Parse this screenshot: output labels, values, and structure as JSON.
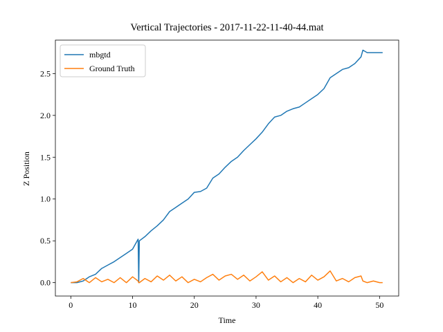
{
  "chart_data": {
    "type": "line",
    "title": "Vertical Trajectories - 2017-11-22-11-40-44.mat",
    "x_label": "Time",
    "y_label": "Z Position",
    "x": [
      0,
      1,
      2,
      3,
      4,
      5,
      6,
      7,
      8,
      9,
      10,
      10.9,
      11,
      11.1,
      12,
      13,
      14,
      15,
      16,
      17,
      18,
      19,
      20,
      21,
      22,
      23,
      24,
      25,
      26,
      27,
      28,
      29,
      30,
      31,
      32,
      33,
      34,
      35,
      36,
      37,
      38,
      39,
      40,
      41,
      42,
      43,
      44,
      45,
      46,
      47,
      47.3,
      48,
      49,
      50,
      50.5
    ],
    "series": [
      {
        "name": "mbgtd",
        "color": "#1f77b4",
        "values": [
          0,
          0,
          0.02,
          0.07,
          0.1,
          0.17,
          0.21,
          0.25,
          0.3,
          0.35,
          0.4,
          0.52,
          0.0,
          0.5,
          0.55,
          0.62,
          0.68,
          0.75,
          0.85,
          0.9,
          0.95,
          1.0,
          1.08,
          1.09,
          1.13,
          1.25,
          1.3,
          1.38,
          1.45,
          1.5,
          1.58,
          1.65,
          1.72,
          1.8,
          1.9,
          1.98,
          2.0,
          2.05,
          2.08,
          2.1,
          2.15,
          2.2,
          2.25,
          2.32,
          2.45,
          2.5,
          2.55,
          2.57,
          2.62,
          2.7,
          2.78,
          2.75,
          2.75,
          2.75,
          2.75
        ]
      },
      {
        "name": "Ground Truth",
        "color": "#ff7f0e",
        "values": [
          0,
          0.01,
          0.05,
          0.0,
          0.06,
          0.01,
          0.04,
          0.0,
          0.06,
          0.0,
          0.07,
          0.02,
          0.0,
          0.0,
          0.05,
          0.01,
          0.08,
          0.03,
          0.09,
          0.02,
          0.07,
          0.0,
          0.04,
          0.01,
          0.06,
          0.1,
          0.03,
          0.08,
          0.1,
          0.04,
          0.09,
          0.02,
          0.07,
          0.13,
          0.03,
          0.08,
          0.01,
          0.06,
          0.0,
          0.05,
          0.01,
          0.09,
          0.03,
          0.07,
          0.14,
          0.02,
          0.05,
          0.01,
          0.06,
          0.08,
          0.02,
          0.0,
          0.02,
          0.0,
          0.0
        ]
      }
    ],
    "xlim": [
      -2.5,
      53.1
    ],
    "ylim": [
      -0.16,
      2.9
    ],
    "xticks": [
      0,
      10,
      20,
      30,
      40,
      50
    ],
    "yticks": [
      {
        "value": 0,
        "label": "0.0"
      },
      {
        "value": 0.5,
        "label": "0.5"
      },
      {
        "value": 1,
        "label": "1.0"
      },
      {
        "value": 1.5,
        "label": "1.5"
      },
      {
        "value": 2,
        "label": "2.0"
      },
      {
        "value": 2.5,
        "label": "2.5"
      }
    ],
    "legend": "upper left",
    "grid": false
  }
}
